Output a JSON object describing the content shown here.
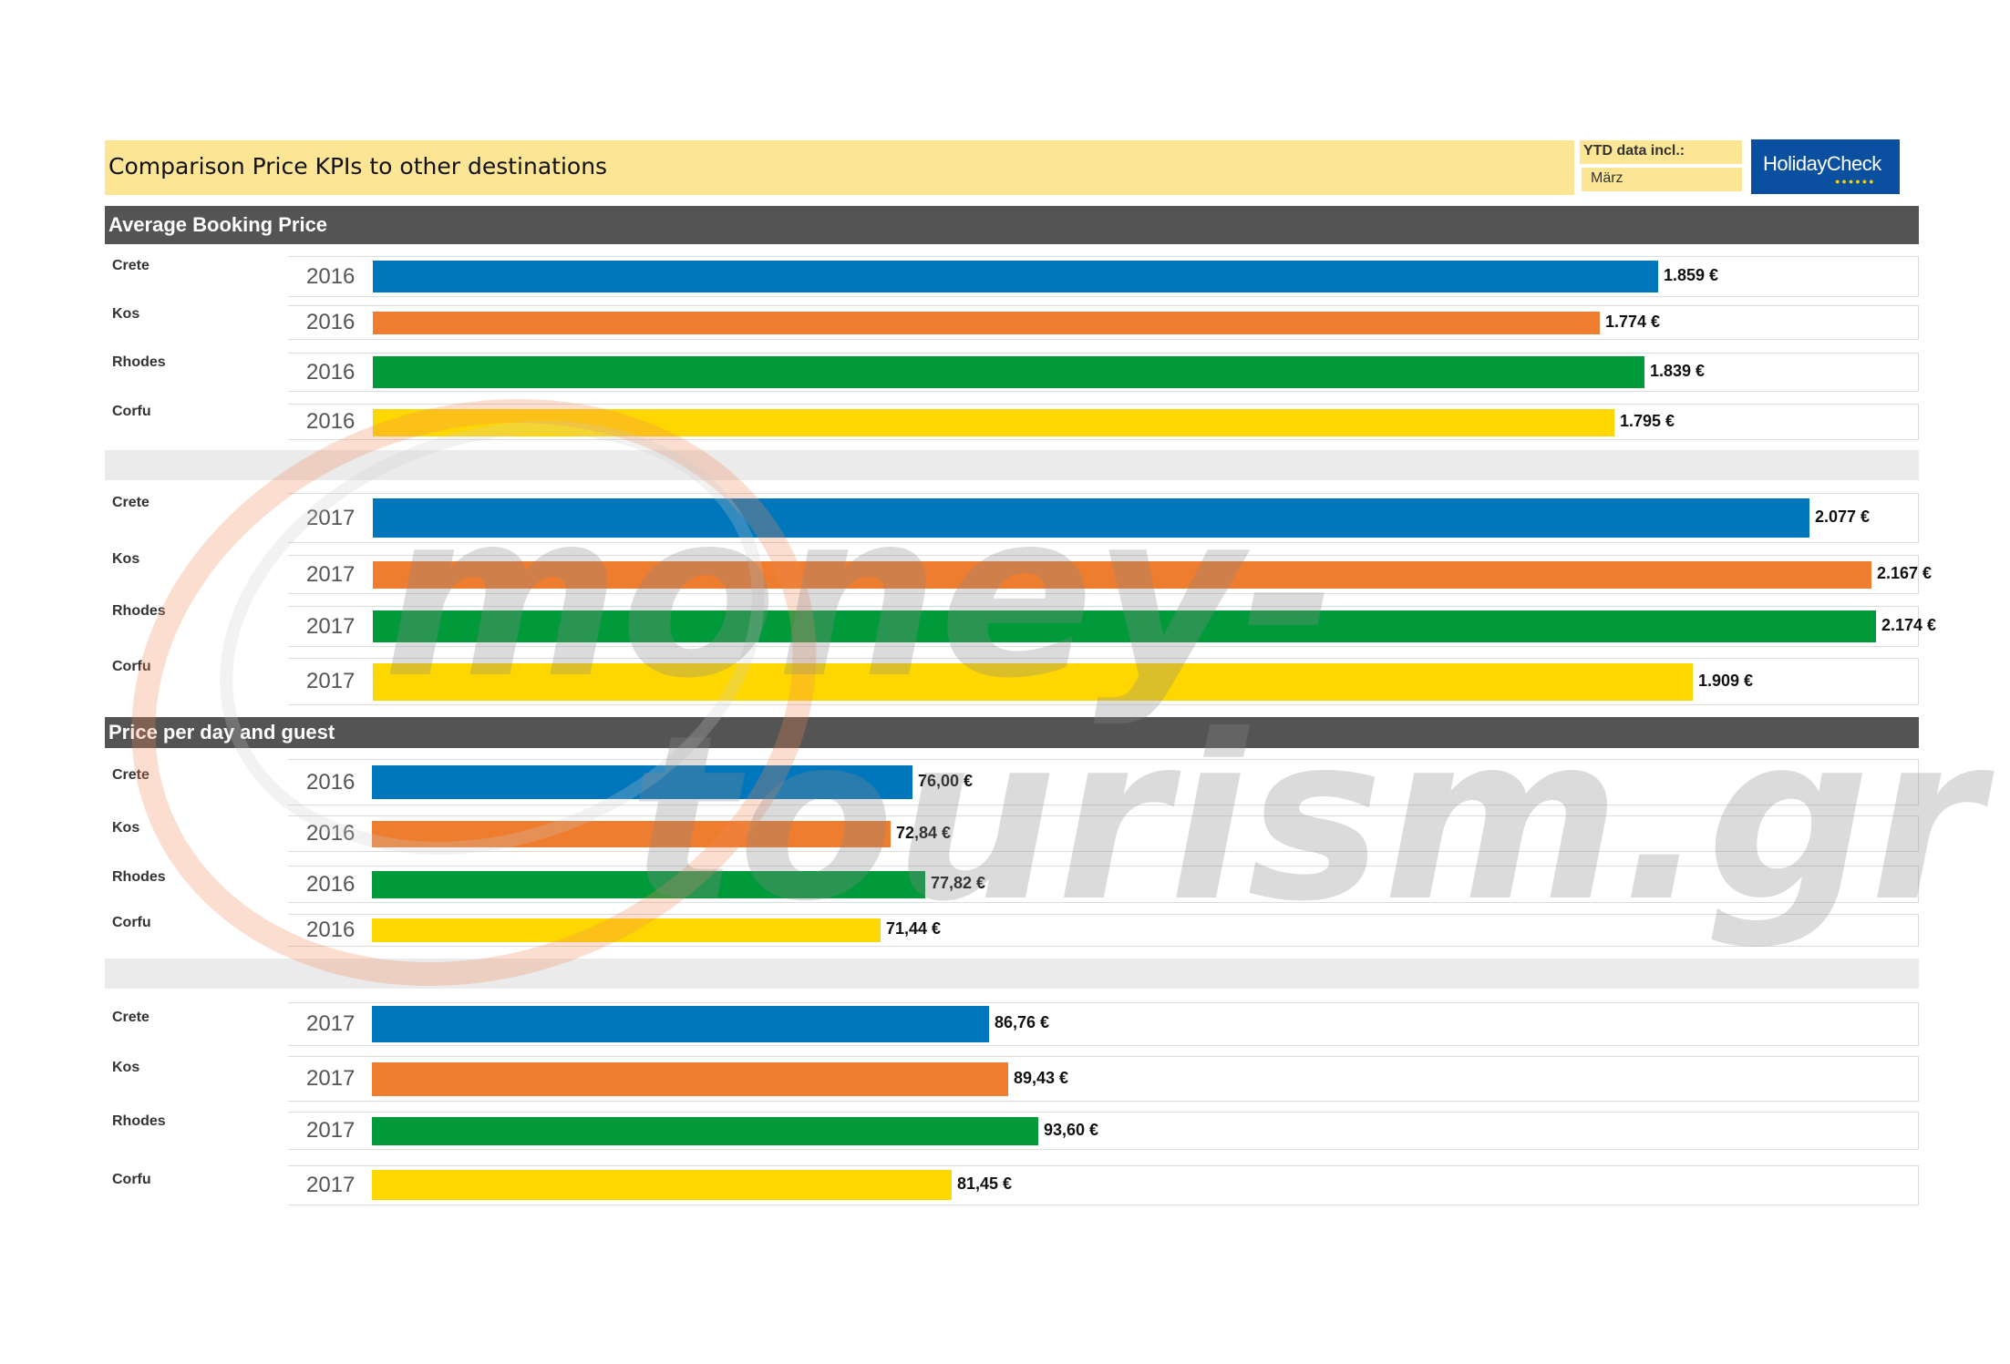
{
  "header": {
    "title": "Comparison Price KPIs to other destinations",
    "ytd_label": "YTD data incl.:",
    "ytd_month": "März",
    "logo_text": "HolidayCheck",
    "logo_dots": "●●●●●●"
  },
  "colors": {
    "Crete": "#0076bd",
    "Kos": "#ee7d2f",
    "Rhodes": "#009a3a",
    "Corfu": "#ffd700"
  },
  "watermark": {
    "line1": "money-",
    "line2": "tourism.gr"
  },
  "chart_data": [
    {
      "type": "bar",
      "title": "Average Booking Price",
      "unit": "€",
      "xlim": [
        0,
        2300
      ],
      "groups": [
        {
          "year": "2016",
          "categories": [
            "Crete",
            "Kos",
            "Rhodes",
            "Corfu"
          ],
          "values": [
            1859,
            1774,
            1839,
            1795
          ],
          "labels": [
            "1.859 €",
            "1.774 €",
            "1.839 €",
            "1.795 €"
          ]
        },
        {
          "year": "2017",
          "categories": [
            "Crete",
            "Kos",
            "Rhodes",
            "Corfu"
          ],
          "values": [
            2077,
            2167,
            2174,
            1909
          ],
          "labels": [
            "2.077 €",
            "2.167 €",
            "2.174 €",
            "1.909 €"
          ]
        }
      ]
    },
    {
      "type": "bar",
      "title": "Price per day and guest",
      "unit": "€",
      "xlim": [
        0,
        205
      ],
      "groups": [
        {
          "year": "2016",
          "categories": [
            "Crete",
            "Kos",
            "Rhodes",
            "Corfu"
          ],
          "values": [
            76.0,
            72.84,
            77.82,
            71.44
          ],
          "labels": [
            "76,00 €",
            "72,84 €",
            "77,82 €",
            "71,44 €"
          ]
        },
        {
          "year": "2017",
          "categories": [
            "Crete",
            "Kos",
            "Rhodes",
            "Corfu"
          ],
          "values": [
            86.76,
            89.43,
            93.6,
            81.45
          ],
          "labels": [
            "86,76 €",
            "89,43 €",
            "93,60 €",
            "81,45 €"
          ]
        }
      ]
    }
  ]
}
